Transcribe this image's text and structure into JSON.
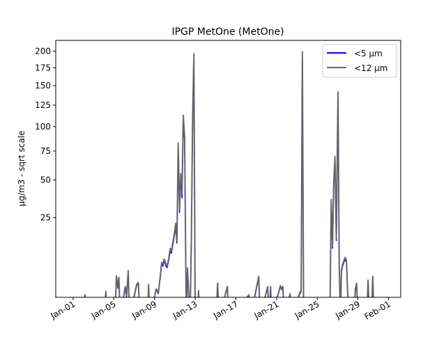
{
  "chart_data": {
    "type": "line",
    "title": "IPGP MetOne (MetOne)",
    "xlabel": "",
    "ylabel": "µg/m3 - sqrt scale",
    "yscale": "sqrt",
    "ylim": [
      0.4,
      217
    ],
    "xlim": [
      "Dec-30 07:00",
      "Feb-02 05:00"
    ],
    "grid": false,
    "legend_position": "top-right",
    "yticks": [
      25,
      50,
      75,
      100,
      125,
      150,
      175,
      200
    ],
    "xticks": [
      "Jan-01",
      "Jan-05",
      "Jan-09",
      "Jan-13",
      "Jan-17",
      "Jan-21",
      "Jan-25",
      "Jan-29",
      "Feb-01"
    ],
    "x": [
      "Jan-01 16:00",
      "Jan-02 04:00",
      "Jan-02 07:00",
      "Jan-04 02:00",
      "Jan-04 05:00",
      "Jan-04 08:00",
      "Jan-05 03:00",
      "Jan-05 06:00",
      "Jan-05 09:00",
      "Jan-05 12:00",
      "Jan-05 15:00",
      "Jan-06 03:00",
      "Jan-06 06:00",
      "Jan-06 10:00",
      "Jan-06 13:00",
      "Jan-07 06:00",
      "Jan-07 10:00",
      "Jan-07 13:00",
      "Jan-08 08:00",
      "Jan-08 10:00",
      "Jan-08 13:00",
      "Jan-09 04:00",
      "Jan-09 09:00",
      "Jan-09 14:00",
      "Jan-09 17:00",
      "Jan-09 20:00",
      "Jan-09 23:00",
      "Jan-10 03:00",
      "Jan-10 06:00",
      "Jan-10 10:00",
      "Jan-10 13:00",
      "Jan-10 16:00",
      "Jan-10 19:00",
      "Jan-10 22:00",
      "Jan-11 02:00",
      "Jan-11 05:00",
      "Jan-11 08:00",
      "Jan-11 11:00",
      "Jan-11 14:00",
      "Jan-11 17:00",
      "Jan-11 20:00",
      "Jan-11 23:00",
      "Jan-12 03:00",
      "Jan-12 06:00",
      "Jan-12 09:00",
      "Jan-12 12:00",
      "Jan-12 15:00",
      "Jan-12 18:00",
      "Jan-12 21:00",
      "Jan-13 00:00",
      "Jan-13 05:00",
      "Jan-13 08:00",
      "Jan-13 11:00",
      "Jan-15 01:00",
      "Jan-15 05:00",
      "Jan-15 08:00",
      "Jan-16 04:00",
      "Jan-16 07:00",
      "Jan-18 07:00",
      "Jan-18 10:00",
      "Jan-19 06:00",
      "Jan-19 09:00",
      "Jan-20 03:00",
      "Jan-20 07:00",
      "Jan-20 10:00",
      "Jan-20 13:00",
      "Jan-21 09:00",
      "Jan-21 12:00",
      "Jan-21 15:00",
      "Jan-21 18:00",
      "Jan-22 08:00",
      "Jan-22 11:00",
      "Jan-23 07:00",
      "Jan-23 10:00",
      "Jan-23 13:00",
      "Jan-23 16:00",
      "Jan-26 06:00",
      "Jan-26 09:00",
      "Jan-26 12:00",
      "Jan-26 15:00",
      "Jan-26 18:00",
      "Jan-26 21:00",
      "Jan-27 01:00",
      "Jan-27 04:00",
      "Jan-27 07:00",
      "Jan-27 09:00",
      "Jan-27 12:00",
      "Jan-27 15:00",
      "Jan-27 18:00",
      "Jan-27 21:00",
      "Jan-28 02:00",
      "Jan-28 15:00",
      "Jan-28 18:00",
      "Jan-28 21:00",
      "Jan-29 00:00",
      "Jan-29 21:00",
      "Jan-30 00:00",
      "Jan-30 03:00",
      "Jan-30 08:00",
      "Jan-30 11:00",
      "Jan-30 14:00"
    ],
    "series": [
      {
        "name": "<5 µm",
        "color": "#0000ff",
        "values": [
          0,
          0.5,
          0,
          0,
          0.8,
          0,
          0,
          3.0,
          1.3,
          2.7,
          0,
          1.3,
          0.4,
          4.0,
          0,
          1.6,
          1.9,
          0,
          0,
          1.6,
          0,
          1.1,
          0.7,
          3.2,
          6.0,
          5.5,
          7.0,
          5.5,
          5.1,
          7.4,
          10,
          9.3,
          12,
          15,
          20,
          13,
          77,
          28,
          51,
          37,
          105,
          84,
          0,
          4.6,
          0.4,
          0,
          14,
          102,
          182,
          0,
          0,
          0.9,
          0,
          0,
          1.8,
          0,
          1.4,
          0,
          0.5,
          0,
          2.9,
          0,
          1.4,
          0,
          1.4,
          0,
          1.5,
          1.1,
          1.4,
          0,
          0.6,
          0,
          0.7,
          0.9,
          185,
          0,
          0,
          33,
          11,
          44,
          65,
          14,
          132,
          5.1,
          0,
          4.2,
          5.5,
          6.5,
          7.4,
          6.5,
          0,
          0,
          1.1,
          1.8,
          0,
          0,
          2.3,
          0,
          0,
          2.9,
          0
        ]
      },
      {
        "name": "<12 µm",
        "color": "#666666",
        "values": [
          0,
          0.6,
          0,
          0,
          0.9,
          0,
          0,
          3.3,
          1.5,
          3.0,
          0,
          1.5,
          0.5,
          4.4,
          0,
          1.8,
          2.1,
          0,
          0,
          1.8,
          0,
          1.2,
          0.8,
          3.5,
          6.5,
          6.0,
          7.5,
          6.0,
          5.5,
          8,
          11,
          10,
          13,
          16,
          22,
          14,
          83,
          30,
          55,
          40,
          113,
          90,
          0,
          5,
          0.5,
          0,
          15,
          110,
          196,
          0,
          0,
          1.0,
          0,
          0,
          2,
          0,
          1.5,
          0,
          0.6,
          0,
          3.2,
          0,
          1.5,
          0,
          1.5,
          0,
          1.6,
          1.2,
          1.5,
          0,
          0.7,
          0,
          0.8,
          1.0,
          199,
          0,
          0,
          36,
          12,
          48,
          70,
          15,
          142,
          5.5,
          0,
          4.5,
          6,
          7,
          8,
          7,
          0,
          0,
          1.2,
          2,
          0,
          0,
          2.5,
          0,
          0,
          3.2,
          0
        ]
      }
    ]
  }
}
